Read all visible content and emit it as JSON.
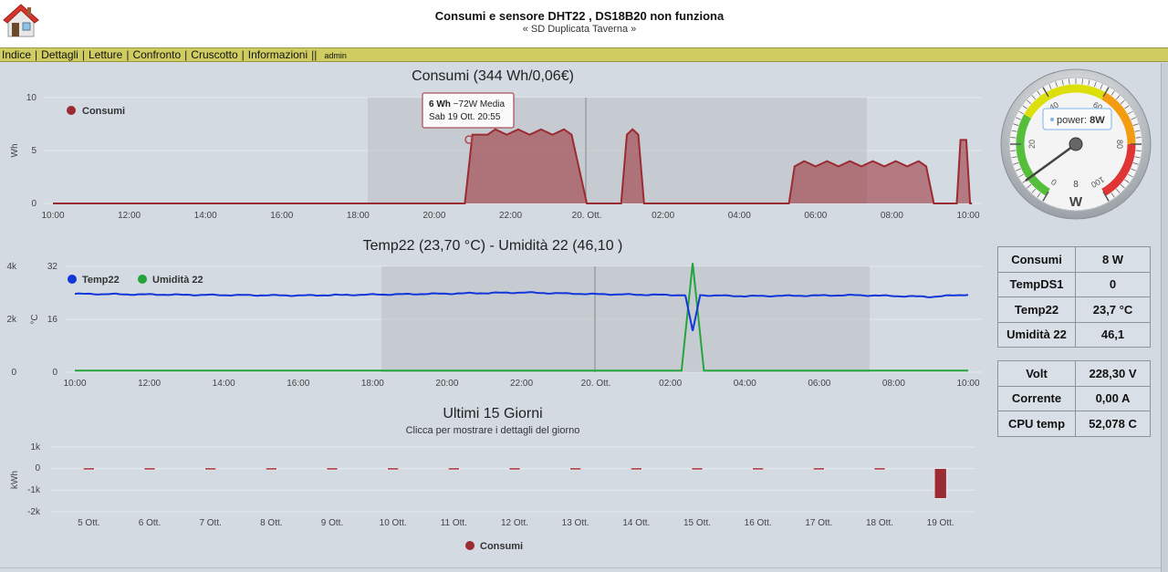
{
  "header": {
    "title": "Consumi e sensore DHT22 , DS18B20 non funziona",
    "subtitle": "« SD Duplicata Taverna »"
  },
  "nav": {
    "items": [
      "Indice",
      "Dettagli",
      "Letture",
      "Confronto",
      "Cruscotto",
      "Informazioni"
    ],
    "trail": "||",
    "user": "admin"
  },
  "chart1": {
    "title": "Consumi (344 Wh/0,06€)",
    "ylabel": "Wh",
    "yticks": [
      "0",
      "5",
      "10"
    ],
    "xticks": [
      "10:00",
      "12:00",
      "14:00",
      "16:00",
      "18:00",
      "20:00",
      "22:00",
      "20. Ott.",
      "02:00",
      "04:00",
      "06:00",
      "08:00",
      "10:00"
    ],
    "legend": "Consumi",
    "tooltip": {
      "value": "6 Wh",
      "note": "~72W Media",
      "date": "Sab 19 Ott. 20:55"
    }
  },
  "chart2": {
    "title": "Temp22 (23,70 °C) - Umidità 22 (46,10 )",
    "ylabel_right": "°C",
    "yticks_left": [
      "0",
      "2k",
      "4k"
    ],
    "yticks_right": [
      "0",
      "16",
      "32"
    ],
    "xticks": [
      "10:00",
      "12:00",
      "14:00",
      "16:00",
      "18:00",
      "20:00",
      "22:00",
      "20. Ott.",
      "02:00",
      "04:00",
      "06:00",
      "08:00",
      "10:00"
    ],
    "legend": [
      "Temp22",
      "Umidità 22"
    ]
  },
  "chart3": {
    "title": "Ultimi 15 Giorni",
    "subtitle": "Clicca per mostrare i dettagli del giorno",
    "ylabel": "kWh",
    "yticks": [
      "-2k",
      "-1k",
      "0",
      "1k"
    ],
    "legend": "Consumi"
  },
  "gauge": {
    "ticks": [
      "0",
      "20",
      "40",
      "60",
      "80",
      "100"
    ],
    "unit": "W",
    "digital": "8",
    "tooltip_label": "power:",
    "tooltip_value": "8W"
  },
  "table1": [
    {
      "k": "Consumi",
      "v": "8 W"
    },
    {
      "k": "TempDS1",
      "v": "0"
    },
    {
      "k": "Temp22",
      "v": "23,7 °C"
    },
    {
      "k": "Umidità 22",
      "v": "46,1"
    }
  ],
  "table2": [
    {
      "k": "Volt",
      "v": "228,30 V"
    },
    {
      "k": "Corrente",
      "v": "0,00 A"
    },
    {
      "k": "CPU temp",
      "v": "52,078 C"
    }
  ],
  "colors": {
    "consumi": "#9b2b32",
    "temp": "#1236d8",
    "umidita": "#23a53b",
    "nav_bg": "#cfcd62",
    "page_bg": "#d3dae2"
  },
  "chart_data": [
    {
      "type": "area",
      "title": "Consumi (344 Wh/0,06€)",
      "ylabel": "Wh",
      "ylim": [
        0,
        10
      ],
      "x_unit": "hours since 19 Ott. 10:00",
      "series": [
        {
          "name": "Consumi",
          "points": [
            [
              0,
              0
            ],
            [
              10.8,
              0
            ],
            [
              11.0,
              6.5
            ],
            [
              11.4,
              6.5
            ],
            [
              11.6,
              7
            ],
            [
              11.9,
              6.5
            ],
            [
              12.2,
              7
            ],
            [
              12.5,
              6.5
            ],
            [
              12.8,
              7
            ],
            [
              13.1,
              6.5
            ],
            [
              13.4,
              7
            ],
            [
              13.6,
              6.5
            ],
            [
              14.0,
              0
            ],
            [
              14.9,
              0
            ],
            [
              15.05,
              6.5
            ],
            [
              15.2,
              7
            ],
            [
              15.35,
              6.5
            ],
            [
              15.5,
              0
            ],
            [
              19.3,
              0
            ],
            [
              19.45,
              3.5
            ],
            [
              19.7,
              4
            ],
            [
              20.0,
              3.5
            ],
            [
              20.3,
              4
            ],
            [
              20.6,
              3.5
            ],
            [
              20.9,
              4
            ],
            [
              21.2,
              3.5
            ],
            [
              21.5,
              4
            ],
            [
              21.8,
              3.5
            ],
            [
              22.1,
              4
            ],
            [
              22.4,
              3.5
            ],
            [
              22.7,
              4
            ],
            [
              22.9,
              3.5
            ],
            [
              23.1,
              0
            ],
            [
              23.7,
              0
            ],
            [
              23.8,
              6
            ],
            [
              23.95,
              6
            ],
            [
              24.05,
              0
            ],
            [
              24.1,
              0
            ]
          ]
        }
      ]
    },
    {
      "type": "line",
      "title": "Temp22 (23,70 °C) - Umidità 22 (46,10 )",
      "ylim": [
        0,
        32
      ],
      "series": [
        {
          "name": "Temp22",
          "points": [
            [
              0,
              23.7
            ],
            [
              3,
              23.4
            ],
            [
              6,
              23.2
            ],
            [
              9,
              23.6
            ],
            [
              12,
              24.1
            ],
            [
              14,
              23.6
            ],
            [
              16.4,
              23.3
            ],
            [
              16.6,
              12.5
            ],
            [
              16.8,
              23.3
            ],
            [
              18,
              23.0
            ],
            [
              21,
              23.3
            ],
            [
              23.0,
              22.8
            ],
            [
              24,
              23.5
            ]
          ]
        },
        {
          "name": "Umidità 22",
          "points": [
            [
              0,
              0.5
            ],
            [
              16.3,
              0.5
            ],
            [
              16.6,
              33
            ],
            [
              16.9,
              0.5
            ],
            [
              24,
              0.5
            ]
          ]
        }
      ]
    },
    {
      "type": "bar",
      "title": "Ultimi 15 Giorni",
      "ylabel": "kWh",
      "ylim": [
        -2000,
        1000
      ],
      "categories": [
        "5 Ott.",
        "6 Ott.",
        "7 Ott.",
        "8 Ott.",
        "9 Ott.",
        "10 Ott.",
        "11 Ott.",
        "12 Ott.",
        "13 Ott.",
        "14 Ott.",
        "15 Ott.",
        "16 Ott.",
        "17 Ott.",
        "18 Ott.",
        "19 Ott."
      ],
      "series": [
        {
          "name": "Consumi",
          "values": [
            30,
            30,
            30,
            30,
            30,
            30,
            30,
            30,
            30,
            30,
            30,
            30,
            30,
            30,
            -1380
          ]
        }
      ]
    }
  ]
}
